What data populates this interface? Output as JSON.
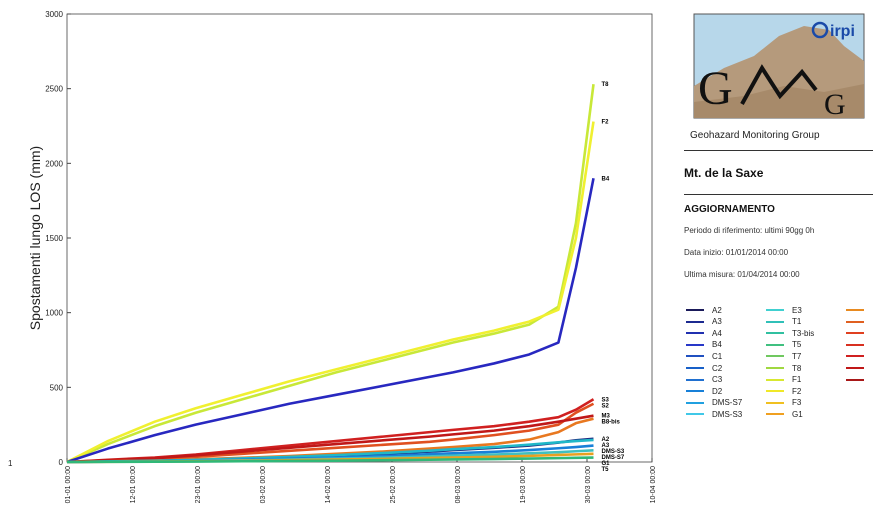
{
  "chart_data": {
    "type": "line",
    "ylabel": "Spostamenti lungo LOS (mm)",
    "ylim": [
      0,
      3000
    ],
    "yticks": [
      0,
      500,
      1000,
      1500,
      2000,
      2500,
      3000
    ],
    "xticks": [
      "01-01 00:00",
      "12-01 00:00",
      "23-01 00:00",
      "03-02 00:00",
      "14-02 00:00",
      "25-02 00:00",
      "08-03 00:00",
      "19-03 00:00",
      "30-03 00:00",
      "10-04 00:00"
    ],
    "x_days": [
      0,
      7,
      15,
      22,
      30,
      38,
      46,
      54,
      62,
      66,
      73,
      79,
      84,
      87,
      90
    ],
    "series": [
      {
        "name": "T8",
        "color": "#c8e838",
        "values": [
          0,
          120,
          240,
          330,
          420,
          510,
          600,
          680,
          760,
          800,
          860,
          920,
          1040,
          1600,
          2530
        ]
      },
      {
        "name": "F2",
        "color": "#f0f030",
        "values": [
          0,
          140,
          270,
          360,
          450,
          540,
          620,
          700,
          780,
          820,
          880,
          940,
          1020,
          1500,
          2280
        ]
      },
      {
        "name": "B4",
        "color": "#2828c0",
        "values": [
          0,
          90,
          180,
          250,
          320,
          390,
          450,
          510,
          570,
          600,
          660,
          720,
          800,
          1300,
          1900
        ]
      },
      {
        "name": "S2",
        "color": "#d02020",
        "values": [
          0,
          15,
          30,
          50,
          80,
          110,
          140,
          170,
          200,
          215,
          240,
          270,
          300,
          350,
          420
        ]
      },
      {
        "name": "S3",
        "color": "#e05020",
        "values": [
          0,
          10,
          20,
          35,
          55,
          75,
          95,
          115,
          135,
          150,
          180,
          210,
          250,
          330,
          390
        ]
      },
      {
        "name": "M3",
        "color": "#c01818",
        "values": [
          0,
          12,
          25,
          45,
          70,
          95,
          120,
          145,
          170,
          185,
          210,
          240,
          270,
          290,
          310
        ]
      },
      {
        "name": "B8-bis",
        "color": "#e87820",
        "values": [
          0,
          5,
          10,
          18,
          28,
          40,
          55,
          70,
          90,
          100,
          120,
          150,
          200,
          260,
          290
        ]
      },
      {
        "name": "A2",
        "color": "#1c2a80",
        "values": [
          0,
          3,
          7,
          12,
          20,
          30,
          40,
          55,
          70,
          80,
          95,
          110,
          130,
          145,
          155
        ]
      },
      {
        "name": "A3",
        "color": "#20b8c8",
        "values": [
          0,
          4,
          8,
          14,
          24,
          34,
          46,
          60,
          76,
          86,
          100,
          116,
          132,
          140,
          148
        ]
      },
      {
        "name": "DMS-S3",
        "color": "#1880d8",
        "values": [
          0,
          2,
          5,
          9,
          15,
          22,
          30,
          40,
          52,
          58,
          68,
          80,
          92,
          100,
          110
        ]
      },
      {
        "name": "DMS-S7",
        "color": "#40c0c0",
        "values": [
          0,
          2,
          4,
          7,
          11,
          16,
          22,
          29,
          37,
          42,
          50,
          58,
          66,
          72,
          78
        ]
      },
      {
        "name": "G1",
        "color": "#e8a020",
        "values": [
          0,
          1,
          3,
          5,
          8,
          12,
          16,
          21,
          27,
          30,
          35,
          41,
          47,
          51,
          55
        ]
      },
      {
        "name": "T5",
        "color": "#30b878",
        "values": [
          0,
          1,
          2,
          3,
          5,
          7,
          9,
          12,
          15,
          17,
          20,
          23,
          26,
          28,
          30
        ]
      }
    ],
    "end_labels": [
      "T8",
      "F2",
      "B4",
      "S3",
      "S2",
      "M3",
      "B8-bis",
      "A2",
      "A3",
      "DMS-S3",
      "DMS-S7",
      "G1",
      "T5"
    ]
  },
  "panel": {
    "logo_text_cnr": "irpi",
    "logo_letters": "G M G",
    "logo_caption": "Geohazard Monitoring Group",
    "site_title": "Mt. de la Saxe",
    "update_title": "AGGIORNAMENTO",
    "period": "Periodo di riferimento: ultimi 90gg 0h",
    "start_date": "Data inizio: 01/01/2014 00:00",
    "last_measure": "Ultima misura: 01/04/2014 00:00"
  },
  "left_marker": "1",
  "legend": [
    {
      "label": "A2",
      "color": "#1a1a5a"
    },
    {
      "label": "A3",
      "color": "#1c2a90"
    },
    {
      "label": "A4",
      "color": "#2030b0"
    },
    {
      "label": "B4",
      "color": "#2838c8"
    },
    {
      "label": "C1",
      "color": "#2050c0"
    },
    {
      "label": "C2",
      "color": "#1860c8"
    },
    {
      "label": "C3",
      "color": "#2070d0"
    },
    {
      "label": "D2",
      "color": "#1880d8"
    },
    {
      "label": "DMS-S7",
      "color": "#20a0e0"
    },
    {
      "label": "DMS-S3",
      "color": "#40c8e8"
    },
    {
      "label": "E3",
      "color": "#40d0d0"
    },
    {
      "label": "T1",
      "color": "#30c0b8"
    },
    {
      "label": "T3-bis",
      "color": "#30c0a0"
    },
    {
      "label": "T5",
      "color": "#40c080"
    },
    {
      "label": "T7",
      "color": "#70c860"
    },
    {
      "label": "T8",
      "color": "#a0d840"
    },
    {
      "label": "F1",
      "color": "#d8e830"
    },
    {
      "label": "F2",
      "color": "#f0e828"
    },
    {
      "label": "F3",
      "color": "#f0c020"
    },
    {
      "label": "G1",
      "color": "#f0a020"
    },
    {
      "label": "",
      "color": "#e88a20"
    },
    {
      "label": "",
      "color": "#e06020"
    },
    {
      "label": "",
      "color": "#e04020"
    },
    {
      "label": "",
      "color": "#d83020"
    },
    {
      "label": "",
      "color": "#d02020"
    },
    {
      "label": "",
      "color": "#c01818"
    },
    {
      "label": "",
      "color": "#a81818"
    }
  ]
}
